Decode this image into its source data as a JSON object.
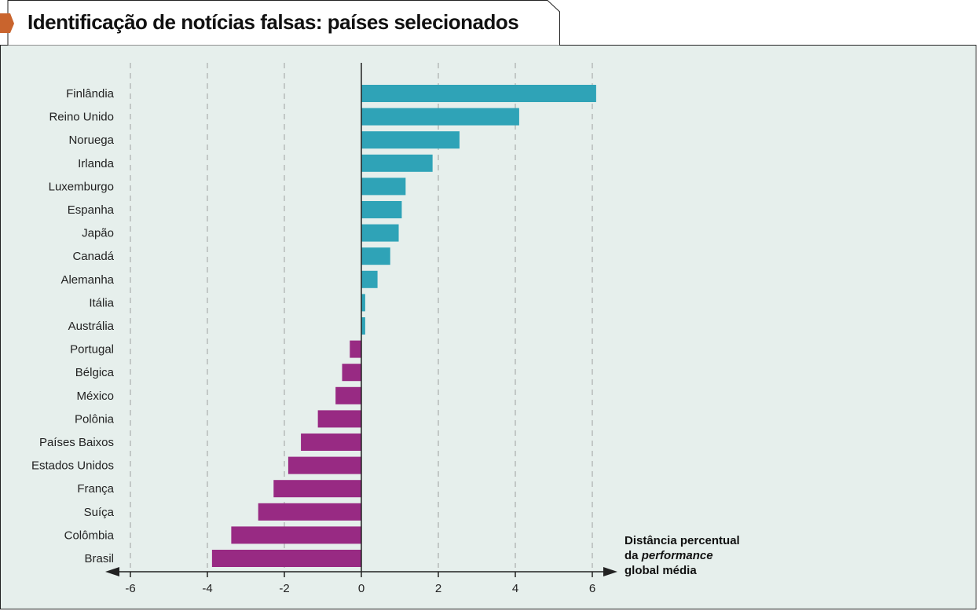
{
  "title": "Identificação de notícias falsas: países selecionados",
  "colors": {
    "positive": "#2fa3b7",
    "negative": "#982a83",
    "background": "#e6efec",
    "accent_tab": "#c9642d",
    "gridline": "#b5bbb9"
  },
  "chart_data": {
    "type": "bar",
    "orientation": "horizontal",
    "title": "Identificação de notícias falsas: países selecionados",
    "xlabel_parts": [
      "Distância percentual",
      "da",
      "performance",
      "global média"
    ],
    "xlim": [
      -6,
      6
    ],
    "xticks": [
      -6,
      -4,
      -2,
      0,
      2,
      4,
      6
    ],
    "xtick_labels": [
      "-6",
      "-4",
      "-2",
      "0",
      "2",
      "4",
      "6"
    ],
    "grid": true,
    "categories": [
      "Finlândia",
      "Reino Unido",
      "Noruega",
      "Irlanda",
      "Luxemburgo",
      "Espanha",
      "Japão",
      "Canadá",
      "Alemanha",
      "Itália",
      "Austrália",
      "Portugal",
      "Bélgica",
      "México",
      "Polônia",
      "Países Baixos",
      "Estados Unidos",
      "França",
      "Suíça",
      "Colômbia",
      "Brasil"
    ],
    "values": [
      6.1,
      4.1,
      2.55,
      1.85,
      1.15,
      1.05,
      0.97,
      0.75,
      0.42,
      0.1,
      0.1,
      -0.3,
      -0.5,
      -0.67,
      -1.13,
      -1.57,
      -1.9,
      -2.28,
      -2.68,
      -3.38,
      -3.88
    ]
  }
}
